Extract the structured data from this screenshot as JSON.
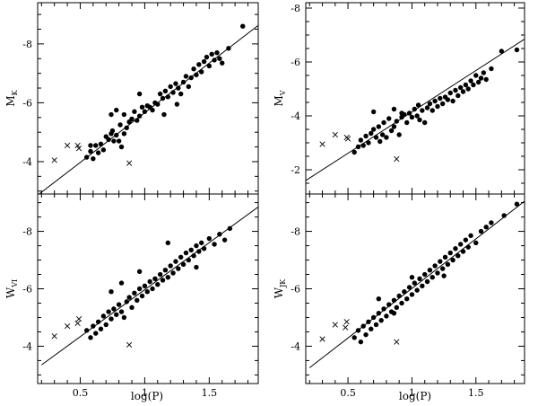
{
  "chart_data": [
    {
      "type": "scatter",
      "ylabel": "M",
      "ylabel_sub": "K",
      "xlim": [
        0.17,
        1.88
      ],
      "ylim": [
        -2.9,
        -9.4
      ],
      "x_ticks": [
        0.5,
        1,
        1.5
      ],
      "x_tick_labels": [],
      "y_ticks": [
        -4,
        -6,
        -8
      ],
      "y_tick_labels": [
        "-4",
        "-6",
        "-8"
      ],
      "fit_line": {
        "x": [
          0.17,
          1.88
        ],
        "y": [
          -2.86,
          -8.63
        ]
      },
      "points": [
        [
          0.55,
          -4.15
        ],
        [
          0.58,
          -4.35
        ],
        [
          0.58,
          -4.55
        ],
        [
          0.6,
          -4.1
        ],
        [
          0.62,
          -4.55
        ],
        [
          0.64,
          -4.3
        ],
        [
          0.66,
          -4.6
        ],
        [
          0.68,
          -4.4
        ],
        [
          0.7,
          -4.85
        ],
        [
          0.72,
          -4.75
        ],
        [
          0.74,
          -4.95
        ],
        [
          0.75,
          -5.05
        ],
        [
          0.76,
          -4.7
        ],
        [
          0.78,
          -4.9
        ],
        [
          0.8,
          -4.7
        ],
        [
          0.81,
          -5.25
        ],
        [
          0.82,
          -4.5
        ],
        [
          0.84,
          -4.95
        ],
        [
          0.86,
          -5.15
        ],
        [
          0.88,
          -5.35
        ],
        [
          0.9,
          -5.45
        ],
        [
          0.92,
          -5.7
        ],
        [
          0.94,
          -5.4
        ],
        [
          0.96,
          -5.55
        ],
        [
          0.74,
          -5.6
        ],
        [
          0.78,
          -5.75
        ],
        [
          0.84,
          -5.6
        ],
        [
          0.98,
          -5.85
        ],
        [
          1.0,
          -5.7
        ],
        [
          1.02,
          -5.9
        ],
        [
          1.04,
          -5.85
        ],
        [
          1.06,
          -5.75
        ],
        [
          1.08,
          -6.0
        ],
        [
          1.1,
          -5.95
        ],
        [
          1.12,
          -6.3
        ],
        [
          1.14,
          -6.15
        ],
        [
          1.16,
          -6.4
        ],
        [
          1.18,
          -6.2
        ],
        [
          1.2,
          -6.55
        ],
        [
          1.22,
          -6.35
        ],
        [
          1.24,
          -6.65
        ],
        [
          1.26,
          -6.5
        ],
        [
          1.28,
          -6.3
        ],
        [
          1.3,
          -6.7
        ],
        [
          1.32,
          -6.9
        ],
        [
          1.34,
          -6.55
        ],
        [
          1.36,
          -6.85
        ],
        [
          1.38,
          -7.15
        ],
        [
          1.4,
          -6.95
        ],
        [
          1.42,
          -7.3
        ],
        [
          1.44,
          -7.05
        ],
        [
          1.46,
          -7.4
        ],
        [
          1.48,
          -7.55
        ],
        [
          1.5,
          -7.25
        ],
        [
          1.52,
          -7.65
        ],
        [
          1.54,
          -7.45
        ],
        [
          1.56,
          -7.7
        ],
        [
          1.58,
          -7.5
        ],
        [
          1.6,
          -7.35
        ],
        [
          1.65,
          -7.85
        ],
        [
          1.76,
          -8.6
        ],
        [
          1.15,
          -5.6
        ],
        [
          1.25,
          -5.95
        ],
        [
          0.96,
          -6.3
        ]
      ],
      "crosses": [
        [
          0.3,
          -4.05
        ],
        [
          0.4,
          -4.55
        ],
        [
          0.48,
          -4.55
        ],
        [
          0.49,
          -4.45
        ],
        [
          0.88,
          -3.95
        ]
      ]
    },
    {
      "type": "scatter",
      "ylabel": "M",
      "ylabel_sub": "V",
      "xlim": [
        0.17,
        1.88
      ],
      "ylim": [
        -1.1,
        -8.2
      ],
      "x_ticks": [
        0.5,
        1,
        1.5
      ],
      "x_tick_labels": [],
      "y_ticks": [
        -2,
        -4,
        -6,
        -8
      ],
      "y_tick_labels": [
        "-2",
        "-4",
        "-6",
        "-8"
      ],
      "fit_line": {
        "x": [
          0.17,
          1.88
        ],
        "y": [
          -1.6,
          -6.85
        ]
      },
      "points": [
        [
          0.55,
          -2.65
        ],
        [
          0.58,
          -2.85
        ],
        [
          0.6,
          -3.1
        ],
        [
          0.62,
          -2.9
        ],
        [
          0.64,
          -3.25
        ],
        [
          0.66,
          -3.0
        ],
        [
          0.68,
          -3.35
        ],
        [
          0.7,
          -3.5
        ],
        [
          0.72,
          -3.2
        ],
        [
          0.74,
          -3.6
        ],
        [
          0.75,
          -3.05
        ],
        [
          0.77,
          -3.3
        ],
        [
          0.78,
          -3.75
        ],
        [
          0.8,
          -3.2
        ],
        [
          0.82,
          -3.9
        ],
        [
          0.84,
          -3.45
        ],
        [
          0.86,
          -3.6
        ],
        [
          0.88,
          -3.8
        ],
        [
          0.9,
          -3.3
        ],
        [
          0.92,
          -3.95
        ],
        [
          0.94,
          -4.05
        ],
        [
          0.96,
          -3.75
        ],
        [
          0.98,
          -4.1
        ],
        [
          1.0,
          -3.95
        ],
        [
          1.02,
          -4.25
        ],
        [
          1.04,
          -4.0
        ],
        [
          1.06,
          -3.85
        ],
        [
          1.08,
          -4.2
        ],
        [
          1.1,
          -3.75
        ],
        [
          1.12,
          -4.3
        ],
        [
          1.14,
          -4.45
        ],
        [
          1.16,
          -4.2
        ],
        [
          1.18,
          -4.55
        ],
        [
          1.2,
          -4.35
        ],
        [
          1.22,
          -4.65
        ],
        [
          1.24,
          -4.45
        ],
        [
          1.26,
          -4.7
        ],
        [
          1.28,
          -4.6
        ],
        [
          1.3,
          -4.85
        ],
        [
          1.32,
          -4.55
        ],
        [
          1.34,
          -4.95
        ],
        [
          1.36,
          -4.75
        ],
        [
          1.38,
          -5.05
        ],
        [
          1.4,
          -4.9
        ],
        [
          1.42,
          -5.15
        ],
        [
          1.44,
          -5.0
        ],
        [
          1.46,
          -5.3
        ],
        [
          1.48,
          -5.15
        ],
        [
          1.5,
          -5.5
        ],
        [
          1.52,
          -5.25
        ],
        [
          1.54,
          -5.4
        ],
        [
          1.56,
          -5.6
        ],
        [
          1.58,
          -5.35
        ],
        [
          1.62,
          -5.75
        ],
        [
          1.7,
          -6.4
        ],
        [
          1.82,
          -6.45
        ],
        [
          0.7,
          -4.15
        ],
        [
          0.86,
          -4.25
        ],
        [
          0.92,
          -4.1
        ],
        [
          1.05,
          -4.4
        ]
      ],
      "crosses": [
        [
          0.3,
          -2.95
        ],
        [
          0.4,
          -3.3
        ],
        [
          0.49,
          -3.2
        ],
        [
          0.5,
          -3.15
        ],
        [
          0.88,
          -2.4
        ]
      ]
    },
    {
      "type": "scatter",
      "ylabel": "W",
      "ylabel_sub": "VI",
      "xlim": [
        0.17,
        1.88
      ],
      "ylim": [
        -2.7,
        -9.3
      ],
      "x_ticks": [
        0.5,
        1,
        1.5
      ],
      "x_tick_labels": [],
      "y_ticks": [
        -4,
        -6,
        -8
      ],
      "y_tick_labels": [
        "-4",
        "-6",
        "-8"
      ],
      "fit_line": {
        "x": [
          0.2,
          1.88
        ],
        "y": [
          -3.35,
          -8.85
        ]
      },
      "points": [
        [
          0.55,
          -4.55
        ],
        [
          0.58,
          -4.3
        ],
        [
          0.6,
          -4.7
        ],
        [
          0.62,
          -4.45
        ],
        [
          0.64,
          -4.85
        ],
        [
          0.66,
          -4.6
        ],
        [
          0.68,
          -5.05
        ],
        [
          0.7,
          -4.75
        ],
        [
          0.72,
          -5.2
        ],
        [
          0.74,
          -4.95
        ],
        [
          0.76,
          -5.3
        ],
        [
          0.78,
          -5.1
        ],
        [
          0.8,
          -5.45
        ],
        [
          0.82,
          -5.2
        ],
        [
          0.84,
          -5.0
        ],
        [
          0.86,
          -5.55
        ],
        [
          0.88,
          -5.7
        ],
        [
          0.9,
          -5.35
        ],
        [
          0.92,
          -5.85
        ],
        [
          0.94,
          -5.6
        ],
        [
          0.96,
          -6.0
        ],
        [
          0.98,
          -5.75
        ],
        [
          1.0,
          -6.1
        ],
        [
          1.02,
          -5.9
        ],
        [
          1.04,
          -6.25
        ],
        [
          1.06,
          -6.0
        ],
        [
          1.08,
          -6.35
        ],
        [
          1.1,
          -6.15
        ],
        [
          1.12,
          -6.5
        ],
        [
          1.14,
          -6.3
        ],
        [
          1.16,
          -6.65
        ],
        [
          1.18,
          -6.4
        ],
        [
          1.2,
          -6.8
        ],
        [
          1.22,
          -6.55
        ],
        [
          1.24,
          -6.95
        ],
        [
          1.26,
          -6.7
        ],
        [
          1.28,
          -7.1
        ],
        [
          1.3,
          -6.85
        ],
        [
          1.32,
          -7.25
        ],
        [
          1.34,
          -7.0
        ],
        [
          1.36,
          -7.35
        ],
        [
          1.38,
          -7.15
        ],
        [
          1.4,
          -7.5
        ],
        [
          1.42,
          -7.3
        ],
        [
          1.44,
          -7.6
        ],
        [
          1.46,
          -7.4
        ],
        [
          1.5,
          -7.75
        ],
        [
          1.54,
          -7.55
        ],
        [
          1.58,
          -7.9
        ],
        [
          1.62,
          -7.7
        ],
        [
          1.66,
          -8.1
        ],
        [
          0.74,
          -5.9
        ],
        [
          0.82,
          -6.2
        ],
        [
          1.18,
          -7.6
        ],
        [
          0.96,
          -6.6
        ],
        [
          1.4,
          -6.75
        ]
      ],
      "crosses": [
        [
          0.3,
          -4.35
        ],
        [
          0.4,
          -4.7
        ],
        [
          0.48,
          -4.8
        ],
        [
          0.49,
          -4.95
        ],
        [
          0.88,
          -4.05
        ]
      ]
    },
    {
      "type": "scatter",
      "ylabel": "W",
      "ylabel_sub": "JK",
      "xlim": [
        0.17,
        1.88
      ],
      "ylim": [
        -2.7,
        -9.3
      ],
      "x_ticks": [
        0.5,
        1,
        1.5
      ],
      "x_tick_labels": [],
      "y_ticks": [
        -4,
        -6,
        -8
      ],
      "y_tick_labels": [
        "-4",
        "-6",
        "-8"
      ],
      "fit_line": {
        "x": [
          0.2,
          1.88
        ],
        "y": [
          -3.25,
          -9.05
        ]
      },
      "points": [
        [
          0.55,
          -4.3
        ],
        [
          0.58,
          -4.55
        ],
        [
          0.6,
          -4.15
        ],
        [
          0.62,
          -4.7
        ],
        [
          0.64,
          -4.4
        ],
        [
          0.66,
          -4.85
        ],
        [
          0.68,
          -4.6
        ],
        [
          0.7,
          -5.0
        ],
        [
          0.72,
          -4.75
        ],
        [
          0.74,
          -5.15
        ],
        [
          0.76,
          -4.9
        ],
        [
          0.78,
          -5.3
        ],
        [
          0.8,
          -5.05
        ],
        [
          0.82,
          -5.45
        ],
        [
          0.84,
          -5.2
        ],
        [
          0.86,
          -5.6
        ],
        [
          0.88,
          -5.35
        ],
        [
          0.9,
          -5.75
        ],
        [
          0.92,
          -5.5
        ],
        [
          0.94,
          -5.9
        ],
        [
          0.96,
          -5.65
        ],
        [
          0.98,
          -6.05
        ],
        [
          1.0,
          -5.8
        ],
        [
          1.02,
          -6.2
        ],
        [
          1.04,
          -5.95
        ],
        [
          1.06,
          -6.35
        ],
        [
          1.08,
          -6.1
        ],
        [
          1.1,
          -6.5
        ],
        [
          1.12,
          -6.25
        ],
        [
          1.14,
          -6.65
        ],
        [
          1.16,
          -6.4
        ],
        [
          1.18,
          -6.8
        ],
        [
          1.2,
          -6.55
        ],
        [
          1.22,
          -6.95
        ],
        [
          1.24,
          -6.7
        ],
        [
          1.26,
          -7.1
        ],
        [
          1.28,
          -6.85
        ],
        [
          1.3,
          -7.25
        ],
        [
          1.32,
          -7.0
        ],
        [
          1.34,
          -7.4
        ],
        [
          1.36,
          -7.15
        ],
        [
          1.38,
          -7.55
        ],
        [
          1.4,
          -7.3
        ],
        [
          1.42,
          -7.7
        ],
        [
          1.44,
          -7.45
        ],
        [
          1.46,
          -7.85
        ],
        [
          1.5,
          -7.6
        ],
        [
          1.54,
          -8.0
        ],
        [
          1.58,
          -8.15
        ],
        [
          1.62,
          -8.3
        ],
        [
          1.72,
          -8.55
        ],
        [
          1.82,
          -8.95
        ],
        [
          0.74,
          -5.65
        ],
        [
          0.86,
          -5.15
        ],
        [
          1.0,
          -6.4
        ],
        [
          1.25,
          -6.45
        ]
      ],
      "crosses": [
        [
          0.3,
          -4.25
        ],
        [
          0.4,
          -4.75
        ],
        [
          0.48,
          -4.65
        ],
        [
          0.49,
          -4.85
        ],
        [
          0.88,
          -4.15
        ]
      ]
    }
  ],
  "bottom_axis": {
    "x_tick_labels": [
      "0.5",
      "1",
      "1.5"
    ],
    "xlabel": "log(P)"
  }
}
